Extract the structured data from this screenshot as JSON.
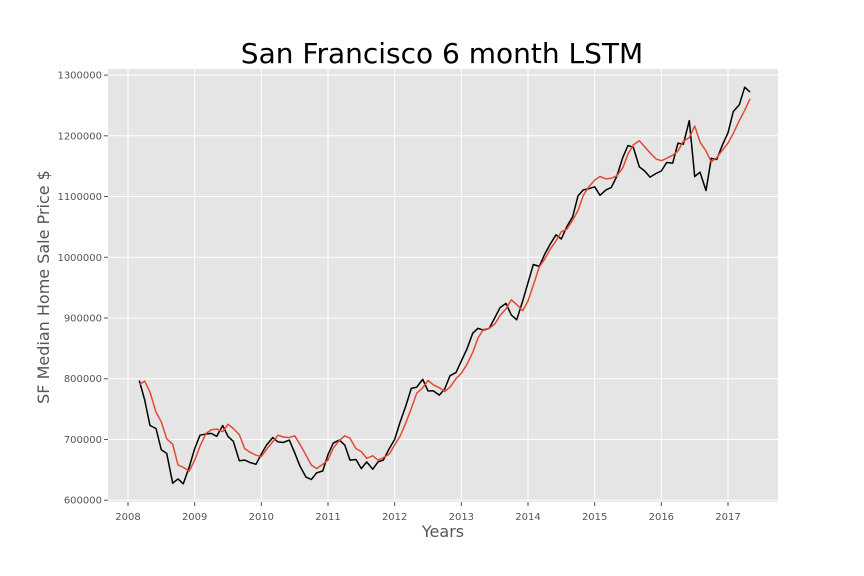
{
  "chart_data": {
    "type": "line",
    "title": "San Francisco 6 month LSTM",
    "xlabel": "Years",
    "ylabel": "SF Median Home Sale Price $",
    "xlim": [
      2007.7,
      2017.75
    ],
    "ylim": [
      597000,
      1310000
    ],
    "grid": true,
    "xticks": [
      2008,
      2009,
      2010,
      2011,
      2012,
      2013,
      2014,
      2015,
      2016,
      2017
    ],
    "xtick_labels": [
      "2008",
      "2009",
      "2010",
      "2011",
      "2012",
      "2013",
      "2014",
      "2015",
      "2016",
      "2017"
    ],
    "yticks": [
      600000,
      700000,
      800000,
      900000,
      1000000,
      1100000,
      1200000,
      1300000
    ],
    "ytick_labels": [
      "600000",
      "700000",
      "800000",
      "900000",
      "1000000",
      "1100000",
      "1200000",
      "1300000"
    ],
    "series": [
      {
        "color": "#000000",
        "points": [
          [
            2008.17,
            797000
          ],
          [
            2008.25,
            765000
          ],
          [
            2008.33,
            723000
          ],
          [
            2008.42,
            718000
          ],
          [
            2008.5,
            683000
          ],
          [
            2008.58,
            677000
          ],
          [
            2008.67,
            628000
          ],
          [
            2008.75,
            635000
          ],
          [
            2008.83,
            627000
          ],
          [
            2008.92,
            655000
          ],
          [
            2009.0,
            685000
          ],
          [
            2009.08,
            707000
          ],
          [
            2009.17,
            709000
          ],
          [
            2009.25,
            710000
          ],
          [
            2009.33,
            705000
          ],
          [
            2009.42,
            723000
          ],
          [
            2009.5,
            705000
          ],
          [
            2009.58,
            697000
          ],
          [
            2009.67,
            665000
          ],
          [
            2009.75,
            666000
          ],
          [
            2009.83,
            662000
          ],
          [
            2009.92,
            659000
          ],
          [
            2010.0,
            676000
          ],
          [
            2010.08,
            691000
          ],
          [
            2010.17,
            703000
          ],
          [
            2010.25,
            696000
          ],
          [
            2010.33,
            695000
          ],
          [
            2010.42,
            699000
          ],
          [
            2010.5,
            678000
          ],
          [
            2010.58,
            656000
          ],
          [
            2010.67,
            638000
          ],
          [
            2010.75,
            634000
          ],
          [
            2010.83,
            645000
          ],
          [
            2010.92,
            648000
          ],
          [
            2011.0,
            675000
          ],
          [
            2011.08,
            694000
          ],
          [
            2011.17,
            699000
          ],
          [
            2011.25,
            691000
          ],
          [
            2011.33,
            666000
          ],
          [
            2011.42,
            667000
          ],
          [
            2011.5,
            652000
          ],
          [
            2011.58,
            663000
          ],
          [
            2011.67,
            651000
          ],
          [
            2011.75,
            663000
          ],
          [
            2011.83,
            666000
          ],
          [
            2011.92,
            685000
          ],
          [
            2012.0,
            700000
          ],
          [
            2012.08,
            728000
          ],
          [
            2012.17,
            756000
          ],
          [
            2012.25,
            784000
          ],
          [
            2012.33,
            786000
          ],
          [
            2012.42,
            799000
          ],
          [
            2012.5,
            780000
          ],
          [
            2012.58,
            780000
          ],
          [
            2012.67,
            773000
          ],
          [
            2012.75,
            783000
          ],
          [
            2012.83,
            805000
          ],
          [
            2012.92,
            810000
          ],
          [
            2013.0,
            829000
          ],
          [
            2013.08,
            848000
          ],
          [
            2013.17,
            875000
          ],
          [
            2013.25,
            883000
          ],
          [
            2013.33,
            880000
          ],
          [
            2013.42,
            883000
          ],
          [
            2013.5,
            900000
          ],
          [
            2013.58,
            917000
          ],
          [
            2013.67,
            924000
          ],
          [
            2013.75,
            905000
          ],
          [
            2013.83,
            897000
          ],
          [
            2013.92,
            928000
          ],
          [
            2014.0,
            958000
          ],
          [
            2014.08,
            988000
          ],
          [
            2014.17,
            985000
          ],
          [
            2014.25,
            1005000
          ],
          [
            2014.33,
            1021000
          ],
          [
            2014.42,
            1037000
          ],
          [
            2014.5,
            1030000
          ],
          [
            2014.58,
            1050000
          ],
          [
            2014.67,
            1067000
          ],
          [
            2014.75,
            1101000
          ],
          [
            2014.83,
            1111000
          ],
          [
            2014.92,
            1113000
          ],
          [
            2015.0,
            1116000
          ],
          [
            2015.08,
            1102000
          ],
          [
            2015.17,
            1111000
          ],
          [
            2015.25,
            1115000
          ],
          [
            2015.33,
            1133000
          ],
          [
            2015.42,
            1164000
          ],
          [
            2015.5,
            1184000
          ],
          [
            2015.58,
            1181000
          ],
          [
            2015.67,
            1149000
          ],
          [
            2015.75,
            1142000
          ],
          [
            2015.83,
            1132000
          ],
          [
            2015.92,
            1138000
          ],
          [
            2016.0,
            1142000
          ],
          [
            2016.08,
            1156000
          ],
          [
            2016.17,
            1155000
          ],
          [
            2016.25,
            1188000
          ],
          [
            2016.33,
            1186000
          ],
          [
            2016.42,
            1225000
          ],
          [
            2016.5,
            1133000
          ],
          [
            2016.58,
            1140000
          ],
          [
            2016.67,
            1110000
          ],
          [
            2016.75,
            1163000
          ],
          [
            2016.83,
            1161000
          ],
          [
            2016.92,
            1186000
          ],
          [
            2017.0,
            1205000
          ],
          [
            2017.08,
            1240000
          ],
          [
            2017.17,
            1251000
          ],
          [
            2017.25,
            1280000
          ],
          [
            2017.33,
            1272000
          ]
        ]
      },
      {
        "color": "#e24a33",
        "points": [
          [
            2008.17,
            790000
          ],
          [
            2008.25,
            796000
          ],
          [
            2008.33,
            778000
          ],
          [
            2008.42,
            745000
          ],
          [
            2008.5,
            729000
          ],
          [
            2008.58,
            701000
          ],
          [
            2008.67,
            692000
          ],
          [
            2008.75,
            658000
          ],
          [
            2008.83,
            654000
          ],
          [
            2008.92,
            648000
          ],
          [
            2009.0,
            666000
          ],
          [
            2009.08,
            689000
          ],
          [
            2009.17,
            710000
          ],
          [
            2009.25,
            716000
          ],
          [
            2009.33,
            717000
          ],
          [
            2009.42,
            713000
          ],
          [
            2009.5,
            725000
          ],
          [
            2009.58,
            718000
          ],
          [
            2009.67,
            708000
          ],
          [
            2009.75,
            685000
          ],
          [
            2009.83,
            679000
          ],
          [
            2009.92,
            674000
          ],
          [
            2010.0,
            672000
          ],
          [
            2010.08,
            684000
          ],
          [
            2010.17,
            696000
          ],
          [
            2010.25,
            707000
          ],
          [
            2010.33,
            704000
          ],
          [
            2010.42,
            703000
          ],
          [
            2010.5,
            706000
          ],
          [
            2010.58,
            692000
          ],
          [
            2010.67,
            674000
          ],
          [
            2010.75,
            658000
          ],
          [
            2010.83,
            652000
          ],
          [
            2010.92,
            659000
          ],
          [
            2011.0,
            666000
          ],
          [
            2011.08,
            686000
          ],
          [
            2011.17,
            698000
          ],
          [
            2011.25,
            706000
          ],
          [
            2011.33,
            702000
          ],
          [
            2011.42,
            685000
          ],
          [
            2011.5,
            680000
          ],
          [
            2011.58,
            669000
          ],
          [
            2011.67,
            673000
          ],
          [
            2011.75,
            666000
          ],
          [
            2011.83,
            670000
          ],
          [
            2011.92,
            676000
          ],
          [
            2012.0,
            691000
          ],
          [
            2012.08,
            705000
          ],
          [
            2012.17,
            728000
          ],
          [
            2012.25,
            751000
          ],
          [
            2012.33,
            776000
          ],
          [
            2012.42,
            785000
          ],
          [
            2012.5,
            797000
          ],
          [
            2012.58,
            790000
          ],
          [
            2012.67,
            785000
          ],
          [
            2012.75,
            779000
          ],
          [
            2012.83,
            786000
          ],
          [
            2012.92,
            800000
          ],
          [
            2013.0,
            809000
          ],
          [
            2013.08,
            823000
          ],
          [
            2013.17,
            843000
          ],
          [
            2013.25,
            867000
          ],
          [
            2013.33,
            881000
          ],
          [
            2013.42,
            883000
          ],
          [
            2013.5,
            890000
          ],
          [
            2013.58,
            904000
          ],
          [
            2013.67,
            915000
          ],
          [
            2013.75,
            930000
          ],
          [
            2013.83,
            922000
          ],
          [
            2013.92,
            912000
          ],
          [
            2014.0,
            928000
          ],
          [
            2014.08,
            954000
          ],
          [
            2014.17,
            984000
          ],
          [
            2014.25,
            997000
          ],
          [
            2014.33,
            1013000
          ],
          [
            2014.42,
            1027000
          ],
          [
            2014.5,
            1042000
          ],
          [
            2014.58,
            1046000
          ],
          [
            2014.67,
            1061000
          ],
          [
            2014.75,
            1077000
          ],
          [
            2014.83,
            1102000
          ],
          [
            2014.92,
            1117000
          ],
          [
            2015.0,
            1127000
          ],
          [
            2015.08,
            1133000
          ],
          [
            2015.17,
            1129000
          ],
          [
            2015.25,
            1130000
          ],
          [
            2015.33,
            1134000
          ],
          [
            2015.42,
            1147000
          ],
          [
            2015.5,
            1170000
          ],
          [
            2015.58,
            1185000
          ],
          [
            2015.67,
            1192000
          ],
          [
            2015.75,
            1182000
          ],
          [
            2015.83,
            1172000
          ],
          [
            2015.92,
            1162000
          ],
          [
            2016.0,
            1159000
          ],
          [
            2016.08,
            1163000
          ],
          [
            2016.17,
            1168000
          ],
          [
            2016.25,
            1175000
          ],
          [
            2016.33,
            1191000
          ],
          [
            2016.42,
            1197000
          ],
          [
            2016.5,
            1216000
          ],
          [
            2016.58,
            1190000
          ],
          [
            2016.67,
            1175000
          ],
          [
            2016.75,
            1157000
          ],
          [
            2016.83,
            1164000
          ],
          [
            2016.92,
            1177000
          ],
          [
            2017.0,
            1188000
          ],
          [
            2017.08,
            1204000
          ],
          [
            2017.17,
            1225000
          ],
          [
            2017.25,
            1242000
          ],
          [
            2017.33,
            1261000
          ]
        ]
      }
    ]
  }
}
